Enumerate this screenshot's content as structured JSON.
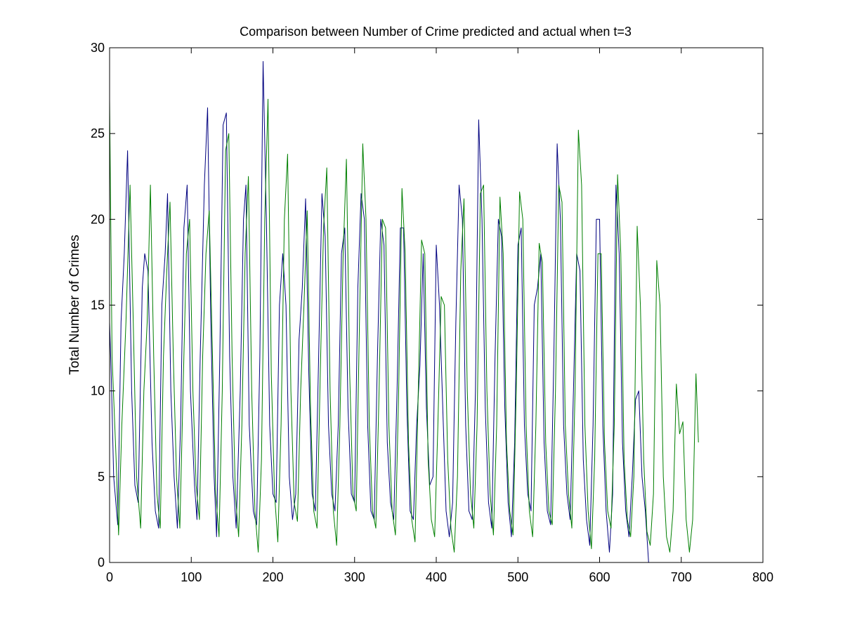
{
  "chart_data": {
    "type": "line",
    "title": "Comparison between Number of Crime predicted and actual when t=3",
    "xlabel": "",
    "ylabel": "Total Number of Crimes",
    "xlim": [
      0,
      800
    ],
    "ylim": [
      0,
      30
    ],
    "xticks": [
      0,
      100,
      200,
      300,
      400,
      500,
      600,
      700,
      800
    ],
    "yticks": [
      0,
      5,
      10,
      15,
      20,
      25,
      30
    ],
    "grid": false,
    "legend": "none",
    "series": [
      {
        "color": "#00007f",
        "x": [
          0,
          2,
          5,
          10,
          14,
          18,
          22,
          27,
          31,
          35,
          40,
          43,
          47,
          52,
          56,
          60,
          64,
          68,
          71,
          75,
          79,
          83,
          87,
          91,
          95,
          99,
          104,
          107,
          111,
          116,
          120,
          124,
          128,
          131,
          135,
          139,
          143,
          147,
          151,
          155,
          160,
          164,
          167,
          171,
          176,
          180,
          184,
          188,
          192,
          196,
          200,
          204,
          208,
          212,
          216,
          220,
          224,
          228,
          232,
          236,
          240,
          244,
          248,
          252,
          256,
          260,
          264,
          268,
          272,
          276,
          280,
          284,
          288,
          292,
          296,
          300,
          304,
          308,
          312,
          316,
          320,
          324,
          328,
          332,
          336,
          340,
          344,
          348,
          352,
          356,
          360,
          364,
          368,
          372,
          376,
          380,
          384,
          388,
          392,
          396,
          400,
          404,
          408,
          412,
          416,
          420,
          424,
          428,
          432,
          436,
          440,
          444,
          448,
          452,
          456,
          460,
          464,
          468,
          472,
          476,
          480,
          484,
          488,
          492,
          496,
          500,
          504,
          508,
          512,
          516,
          520,
          524,
          528,
          532,
          536,
          540,
          544,
          548,
          552,
          556,
          560,
          564,
          568,
          572,
          576,
          580,
          584,
          588,
          592,
          596,
          600,
          604,
          608,
          612,
          616,
          620,
          624,
          628,
          632,
          636,
          640,
          644,
          648,
          652,
          656,
          660
        ],
        "y": [
          14,
          11,
          5,
          2.2,
          14,
          18,
          24,
          10,
          4.5,
          3.5,
          16,
          18,
          17,
          7,
          3,
          2,
          15,
          18,
          21.5,
          10,
          5,
          2,
          8,
          19.5,
          22,
          10,
          4.5,
          2.5,
          12,
          22,
          26.5,
          14,
          5,
          1.5,
          12,
          25.5,
          26.2,
          12,
          5,
          2,
          10,
          20,
          22,
          8,
          3,
          2.2,
          12,
          29.2,
          20,
          8,
          4,
          3.5,
          15,
          18,
          15,
          5,
          2.5,
          4,
          13,
          16,
          21.2,
          11,
          4,
          3,
          12,
          21.5,
          19,
          8,
          4,
          3,
          8,
          18,
          19.5,
          9,
          4,
          3.5,
          16,
          21.5,
          20,
          8,
          3,
          2.5,
          12,
          20,
          18.5,
          7,
          3.5,
          2.5,
          10,
          19.5,
          19.5,
          9,
          3,
          2.5,
          8,
          11.5,
          18,
          9,
          4.5,
          5,
          18.5,
          15,
          9,
          3,
          1.5,
          3.5,
          14,
          22,
          20,
          8,
          3,
          2.5,
          10,
          25.8,
          20,
          9,
          3.5,
          2,
          12,
          20,
          19,
          9,
          3.5,
          1.5,
          7,
          18.5,
          19.5,
          8,
          4,
          3,
          15,
          16,
          18,
          7,
          3,
          2.2,
          12,
          24.4,
          20,
          8,
          4,
          2.5,
          10,
          18,
          17,
          6,
          2.5,
          1,
          8,
          20,
          20,
          8,
          3,
          0.6,
          4,
          22,
          18,
          7,
          3,
          1.5,
          5,
          9.5,
          10,
          5,
          3,
          0
        ]
      },
      {
        "color": "#007f00",
        "x": [
          0,
          3,
          8,
          11,
          15,
          20,
          25,
          29,
          33,
          38,
          42,
          46,
          50,
          54,
          58,
          62,
          66,
          70,
          74,
          78,
          82,
          86,
          90,
          94,
          98,
          102,
          106,
          110,
          114,
          118,
          122,
          126,
          130,
          134,
          138,
          142,
          146,
          150,
          154,
          158,
          162,
          166,
          170,
          174,
          178,
          182,
          186,
          190,
          194,
          198,
          202,
          206,
          210,
          214,
          218,
          222,
          226,
          230,
          234,
          238,
          242,
          246,
          250,
          254,
          258,
          262,
          266,
          270,
          274,
          278,
          282,
          286,
          290,
          294,
          298,
          302,
          306,
          310,
          314,
          318,
          322,
          326,
          330,
          334,
          338,
          342,
          346,
          350,
          354,
          358,
          362,
          366,
          370,
          374,
          378,
          382,
          386,
          390,
          394,
          398,
          402,
          406,
          410,
          414,
          418,
          422,
          426,
          430,
          434,
          438,
          442,
          446,
          450,
          454,
          458,
          462,
          466,
          470,
          474,
          478,
          482,
          486,
          490,
          494,
          498,
          502,
          506,
          510,
          514,
          518,
          522,
          526,
          530,
          534,
          538,
          542,
          546,
          550,
          554,
          558,
          562,
          566,
          570,
          574,
          578,
          582,
          586,
          590,
          594,
          598,
          602,
          606,
          610,
          614,
          618,
          622,
          626,
          630,
          634,
          638,
          642,
          646,
          650,
          654,
          658,
          662,
          666,
          670,
          674,
          678,
          682,
          686,
          690,
          694,
          698,
          702,
          706,
          710,
          714,
          718,
          721
        ],
        "y": [
          27,
          12,
          6,
          1.6,
          8,
          14,
          22,
          14,
          5,
          2,
          10,
          14,
          22,
          12,
          4,
          2,
          12,
          17,
          21,
          12,
          5,
          2,
          10,
          18,
          20,
          10,
          4.5,
          2.5,
          12,
          18,
          20.5,
          12,
          4,
          1.5,
          10,
          24,
          25,
          12,
          4,
          1.5,
          8,
          18,
          22.5,
          10,
          3,
          0.6,
          6,
          20,
          27,
          11,
          4,
          1.2,
          8,
          20,
          23.8,
          10,
          3.5,
          2.4,
          10,
          15,
          20.5,
          9,
          3,
          2,
          11,
          19.5,
          23,
          10,
          3,
          1,
          8,
          18,
          23.5,
          11,
          4,
          3,
          14,
          24.4,
          20,
          8,
          3,
          2,
          10,
          20,
          19.5,
          8,
          3,
          1.6,
          10,
          21.8,
          18,
          7,
          2.5,
          1.2,
          10,
          18.8,
          18,
          6,
          2.5,
          1.5,
          8,
          15.5,
          15,
          6,
          2,
          0.6,
          5,
          17,
          21.2,
          10,
          4,
          2,
          8,
          21.5,
          22,
          10,
          4,
          1.6,
          8,
          21.3,
          18,
          7,
          3,
          1.6,
          10,
          21.6,
          20,
          8,
          3,
          1.5,
          8,
          18.6,
          17.5,
          7,
          3,
          2.2,
          10,
          22,
          21,
          8,
          4,
          2,
          10,
          25.2,
          22,
          8,
          3,
          0.8,
          6,
          18,
          18,
          7,
          3,
          2,
          8,
          22.6,
          18,
          6,
          2.5,
          1.5,
          5,
          19.6,
          15,
          6,
          1.8,
          1,
          4,
          17.6,
          15,
          5,
          1.5,
          0.6,
          3,
          10.4,
          7.5,
          8.2,
          2.5,
          0.6,
          2.5,
          11,
          7
        ]
      }
    ]
  }
}
